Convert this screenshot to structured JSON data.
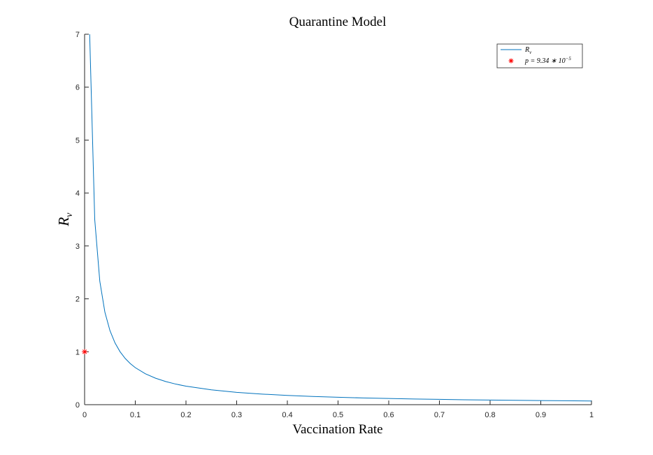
{
  "chart_data": {
    "type": "line",
    "title": "Quarantine Model",
    "xlabel": "Vaccination Rate",
    "ylabel": {
      "main": "R",
      "sub": "v"
    },
    "xlim": [
      0,
      1
    ],
    "ylim": [
      0,
      7
    ],
    "xticks": [
      0,
      0.1,
      0.2,
      0.3,
      0.4,
      0.5,
      0.6,
      0.7,
      0.8,
      0.9,
      1
    ],
    "xtick_labels": [
      "0",
      "0.1",
      "0.2",
      "0.3",
      "0.4",
      "0.5",
      "0.6",
      "0.7",
      "0.8",
      "0.9",
      "1"
    ],
    "yticks": [
      0,
      1,
      2,
      3,
      4,
      5,
      6,
      7
    ],
    "ytick_labels": [
      "0",
      "1",
      "2",
      "3",
      "4",
      "5",
      "6",
      "7"
    ],
    "grid": false,
    "legend_position": "top-right",
    "series": [
      {
        "name": "R_v",
        "legend": {
          "main": "R",
          "sub": "v"
        },
        "kind": "line",
        "color": "#0072BD",
        "x": [
          0.01,
          0.02,
          0.03,
          0.04,
          0.05,
          0.06,
          0.07,
          0.08,
          0.09,
          0.1,
          0.12,
          0.14,
          0.16,
          0.18,
          0.2,
          0.25,
          0.3,
          0.35,
          0.4,
          0.45,
          0.5,
          0.55,
          0.6,
          0.65,
          0.7,
          0.75,
          0.8,
          0.85,
          0.9,
          0.95,
          1.0
        ],
        "y": [
          7.0,
          3.5,
          2.333,
          1.75,
          1.4,
          1.167,
          1.0,
          0.875,
          0.778,
          0.7,
          0.583,
          0.5,
          0.438,
          0.389,
          0.35,
          0.28,
          0.233,
          0.2,
          0.175,
          0.156,
          0.14,
          0.127,
          0.117,
          0.108,
          0.1,
          0.093,
          0.088,
          0.082,
          0.078,
          0.074,
          0.07
        ]
      },
      {
        "name": "p = 9.34 * 10^-5",
        "legend": {
          "main": "p = 9.34 ∗ 10",
          "sup": "−5"
        },
        "kind": "marker",
        "marker": "asterisk",
        "color": "#FF0000",
        "x": [
          9.34e-05
        ],
        "y": [
          1
        ]
      }
    ]
  }
}
